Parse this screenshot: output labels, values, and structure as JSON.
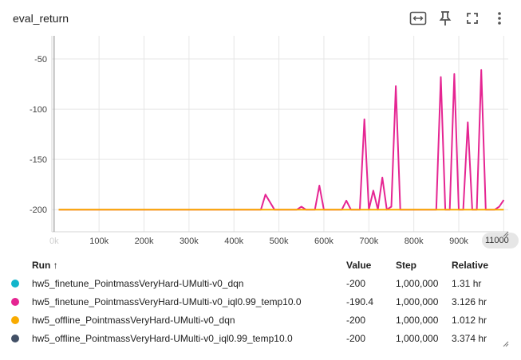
{
  "header": {
    "title": "eval_return",
    "icons": [
      "fit-domain-icon",
      "pin-icon",
      "fullscreen-icon",
      "more-vert-icon"
    ]
  },
  "zoom_pill_label": "11000",
  "chart_data": {
    "type": "line",
    "title": "eval_return",
    "xlabel": "",
    "ylabel": "",
    "xlim": [
      -5000,
      1010000
    ],
    "ylim": [
      -222,
      -27
    ],
    "y_ticks": [
      -50,
      -100,
      -150,
      -200
    ],
    "y_tick_labels": [
      "-50",
      "-100",
      "-150",
      "-200"
    ],
    "x_ticks": [
      0,
      100000,
      200000,
      300000,
      400000,
      500000,
      600000,
      700000,
      800000,
      900000,
      1000000
    ],
    "x_tick_labels": [
      "0k",
      "100k",
      "200k",
      "300k",
      "400k",
      "500k",
      "600k",
      "700k",
      "800k",
      "900k",
      "1M"
    ],
    "grid": true,
    "series": [
      {
        "name": "hw5_finetune_PointmassVeryHard-UMulti-v0_iql0.99_temp10.0",
        "color": "#e52592",
        "x": [
          10000,
          460000,
          470000,
          490000,
          540000,
          550000,
          560000,
          580000,
          590000,
          600000,
          640000,
          650000,
          660000,
          680000,
          690000,
          700000,
          710000,
          720000,
          730000,
          740000,
          750000,
          760000,
          770000,
          850000,
          860000,
          870000,
          880000,
          890000,
          900000,
          910000,
          920000,
          930000,
          940000,
          950000,
          960000,
          970000,
          980000,
          990000,
          1000000
        ],
        "y": [
          -200,
          -200,
          -185,
          -200,
          -200,
          -197,
          -200,
          -200,
          -176,
          -200,
          -200,
          -191,
          -200,
          -200,
          -110,
          -200,
          -181,
          -200,
          -168,
          -200,
          -197,
          -77,
          -200,
          -200,
          -68,
          -200,
          -200,
          -65,
          -200,
          -200,
          -113,
          -200,
          -200,
          -61,
          -200,
          -200,
          -200,
          -197,
          -190.4
        ]
      },
      {
        "name": "hw5_offline_PointmassVeryHard-UMulti-v0_dqn",
        "color": "#f9ab00",
        "x": [
          10000,
          1000000
        ],
        "y": [
          -200,
          -200
        ]
      }
    ]
  },
  "table": {
    "headers": {
      "run": "Run",
      "sort_arrow": "↑",
      "value": "Value",
      "step": "Step",
      "relative": "Relative"
    },
    "rows": [
      {
        "color": "#12b5cb",
        "run": "hw5_finetune_PointmassVeryHard-UMulti-v0_dqn",
        "value": "-200",
        "step": "1,000,000",
        "relative": "1.31 hr"
      },
      {
        "color": "#e52592",
        "run": "hw5_finetune_PointmassVeryHard-UMulti-v0_iql0.99_temp10.0",
        "value": "-190.4",
        "step": "1,000,000",
        "relative": "3.126 hr"
      },
      {
        "color": "#f9ab00",
        "run": "hw5_offline_PointmassVeryHard-UMulti-v0_dqn",
        "value": "-200",
        "step": "1,000,000",
        "relative": "1.012 hr"
      },
      {
        "color": "#425066",
        "run": "hw5_offline_PointmassVeryHard-UMulti-v0_iql0.99_temp10.0",
        "value": "-200",
        "step": "1,000,000",
        "relative": "3.374 hr"
      }
    ]
  }
}
